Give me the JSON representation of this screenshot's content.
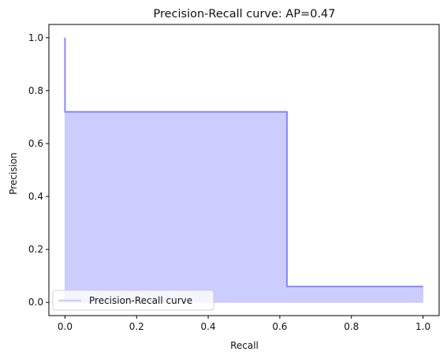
{
  "chart_data": {
    "type": "area",
    "title": "Precision-Recall curve: AP=0.47",
    "xlabel": "Recall",
    "ylabel": "Precision",
    "xlim": [
      -0.045,
      1.045
    ],
    "ylim": [
      -0.05,
      1.05
    ],
    "xticks": [
      0.0,
      0.2,
      0.4,
      0.6,
      0.8,
      1.0
    ],
    "xtick_labels": [
      "0.0",
      "0.2",
      "0.4",
      "0.6",
      "0.8",
      "1.0"
    ],
    "yticks": [
      0.0,
      0.2,
      0.4,
      0.6,
      0.8,
      1.0
    ],
    "ytick_labels": [
      "0.0",
      "0.2",
      "0.4",
      "0.6",
      "0.8",
      "1.0"
    ],
    "grid": false,
    "legend": {
      "placement": "lower-left",
      "entries": [
        "Precision-Recall curve"
      ]
    },
    "series": [
      {
        "name": "Precision-Recall curve",
        "step": "post",
        "color": "#8888ff",
        "fill_color": "#ccccff",
        "recall": [
          0.0,
          0.0,
          0.0,
          0.62,
          0.62,
          1.0
        ],
        "precision": [
          1.0,
          0.72,
          0.72,
          0.72,
          0.06,
          0.06
        ]
      }
    ]
  }
}
